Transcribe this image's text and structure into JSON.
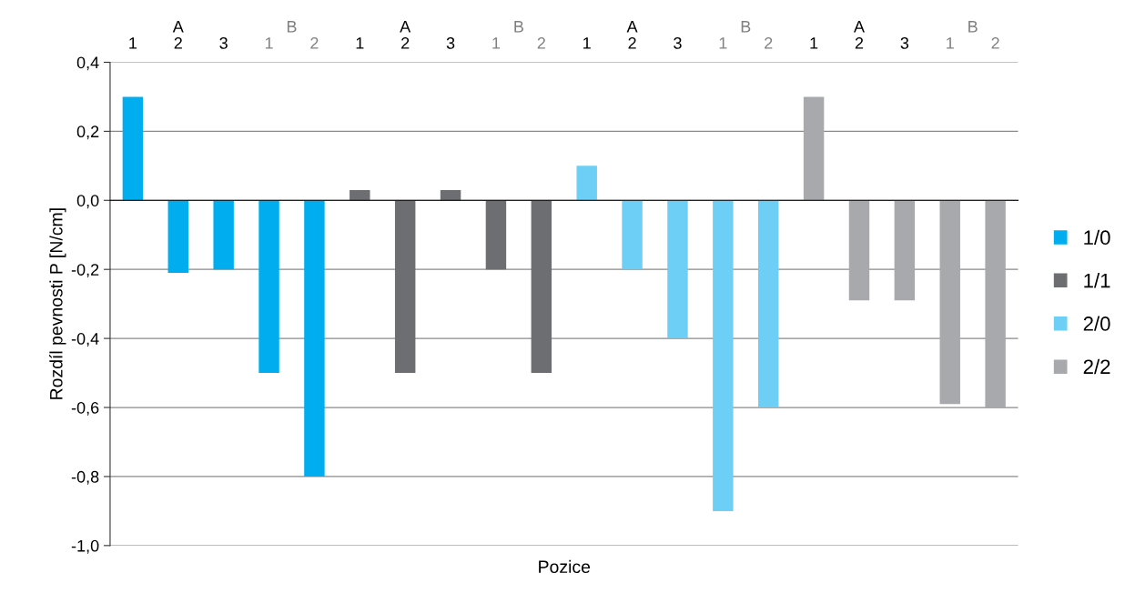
{
  "chart_data": {
    "type": "bar",
    "xlabel": "Pozice",
    "ylabel": "Rozdíl pevnosti P [N/cm]",
    "categories": [
      "1",
      "2",
      "3",
      "1",
      "2",
      "1",
      "2",
      "3",
      "1",
      "2",
      "1",
      "2",
      "3",
      "1",
      "2",
      "1",
      "2",
      "3",
      "1",
      "2"
    ],
    "annotations": [
      "A",
      "B",
      "A",
      "B",
      "A",
      "B",
      "A",
      "B"
    ],
    "series": [
      {
        "name": "1/0",
        "color": "#00aeef",
        "values": [
          0.3,
          -0.21,
          -0.2,
          -0.5,
          -0.8,
          null,
          null,
          null,
          null,
          null,
          null,
          null,
          null,
          null,
          null,
          null,
          null,
          null,
          null,
          null
        ]
      },
      {
        "name": "1/1",
        "color": "#6d6e71",
        "values": [
          null,
          null,
          null,
          null,
          null,
          0.03,
          -0.5,
          0.03,
          -0.2,
          -0.5,
          null,
          null,
          null,
          null,
          null,
          null,
          null,
          null,
          null,
          null
        ]
      },
      {
        "name": "2/0",
        "color": "#6dcff6",
        "values": [
          null,
          null,
          null,
          null,
          null,
          null,
          null,
          null,
          null,
          null,
          0.1,
          -0.2,
          -0.4,
          -0.9,
          -0.6,
          null,
          null,
          null,
          null,
          null
        ]
      },
      {
        "name": "2/2",
        "color": "#a7a9ac",
        "values": [
          null,
          null,
          null,
          null,
          null,
          null,
          null,
          null,
          null,
          null,
          null,
          null,
          null,
          null,
          null,
          0.3,
          -0.29,
          -0.29,
          -0.59,
          -0.6
        ]
      }
    ],
    "ylim": [
      -1.0,
      0.4
    ],
    "yticks": [
      {
        "value": -1.0,
        "label": "-1,0"
      },
      {
        "value": -0.8,
        "label": "-0,8"
      },
      {
        "value": -0.6,
        "label": "-0,6"
      },
      {
        "value": -0.4,
        "label": "-0,4"
      },
      {
        "value": -0.2,
        "label": "-0,2"
      },
      {
        "value": 0.0,
        "label": "0,0"
      },
      {
        "value": 0.2,
        "label": "0,2"
      },
      {
        "value": 0.4,
        "label": "0,4"
      }
    ],
    "grid": "y",
    "legend": "right"
  }
}
